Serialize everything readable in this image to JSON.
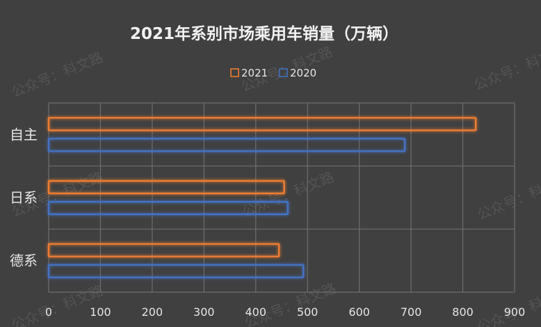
{
  "chart_data": {
    "type": "bar",
    "orientation": "horizontal",
    "title": "2021年系别市场乘用车销量（万辆）",
    "categories": [
      "自主",
      "日系",
      "德系"
    ],
    "series": [
      {
        "name": "2021",
        "values": [
          825,
          455,
          445
        ],
        "color": "#ed7d31"
      },
      {
        "name": "2020",
        "values": [
          688,
          462,
          492
        ],
        "color": "#4472c4"
      }
    ],
    "xlim": [
      0,
      900
    ],
    "x_ticks": [
      "0",
      "100",
      "200",
      "300",
      "400",
      "500",
      "600",
      "700",
      "800",
      "900"
    ],
    "grid": true,
    "legend_position": "top"
  },
  "watermark": "公众号：科文路",
  "colors": {
    "background": "#404040",
    "grid": "#6e6e6e"
  }
}
